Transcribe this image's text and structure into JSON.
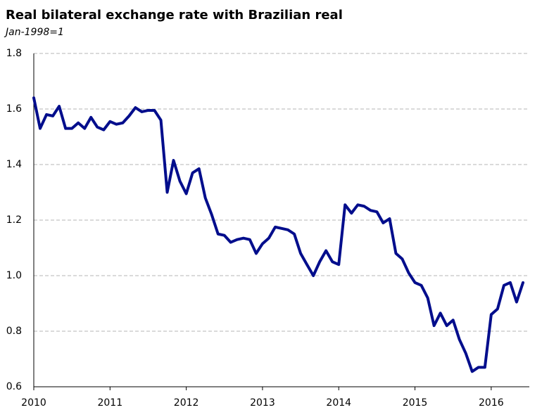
{
  "chart_data": {
    "type": "line",
    "title": "Real bilateral exchange rate with Brazilian real",
    "subtitle": "Jan-1998=1",
    "x": [
      2010,
      2010.083,
      2010.167,
      2010.25,
      2010.333,
      2010.417,
      2010.5,
      2010.583,
      2010.667,
      2010.75,
      2010.833,
      2010.917,
      2011,
      2011.083,
      2011.167,
      2011.25,
      2011.333,
      2011.417,
      2011.5,
      2011.583,
      2011.667,
      2011.75,
      2011.833,
      2011.917,
      2012,
      2012.083,
      2012.167,
      2012.25,
      2012.333,
      2012.417,
      2012.5,
      2012.583,
      2012.667,
      2012.75,
      2012.833,
      2012.917,
      2013,
      2013.083,
      2013.167,
      2013.25,
      2013.333,
      2013.417,
      2013.5,
      2013.583,
      2013.667,
      2013.75,
      2013.833,
      2013.917,
      2014,
      2014.083,
      2014.167,
      2014.25,
      2014.333,
      2014.417,
      2014.5,
      2014.583,
      2014.667,
      2014.75,
      2014.833,
      2014.917,
      2015,
      2015.083,
      2015.167,
      2015.25,
      2015.333,
      2015.417,
      2015.5,
      2015.583,
      2015.667,
      2015.75,
      2015.833,
      2015.917,
      2016,
      2016.083,
      2016.167,
      2016.25,
      2016.333,
      2016.417
    ],
    "series": [
      {
        "color": "#000d8c",
        "values": [
          1.64,
          1.53,
          1.58,
          1.575,
          1.61,
          1.53,
          1.53,
          1.55,
          1.53,
          1.57,
          1.535,
          1.525,
          1.555,
          1.545,
          1.55,
          1.575,
          1.605,
          1.59,
          1.595,
          1.595,
          1.56,
          1.3,
          1.415,
          1.34,
          1.295,
          1.37,
          1.385,
          1.28,
          1.22,
          1.15,
          1.145,
          1.12,
          1.13,
          1.135,
          1.13,
          1.08,
          1.115,
          1.135,
          1.175,
          1.17,
          1.165,
          1.15,
          1.08,
          1.04,
          1.0,
          1.05,
          1.09,
          1.05,
          1.04,
          1.255,
          1.225,
          1.255,
          1.25,
          1.235,
          1.23,
          1.19,
          1.205,
          1.08,
          1.06,
          1.01,
          0.975,
          0.965,
          0.92,
          0.82,
          0.865,
          0.82,
          0.84,
          0.77,
          0.72,
          0.655,
          0.67,
          0.67,
          0.86,
          0.88,
          0.965,
          0.975,
          0.905,
          0.975
        ]
      }
    ],
    "xlim": [
      2010,
      2016.5
    ],
    "xticks": [
      2010,
      2011,
      2012,
      2013,
      2014,
      2015,
      2016
    ],
    "ylim": [
      0.6,
      1.8
    ],
    "yticks": [
      0.6,
      0.8,
      {
        "value": 1,
        "label": "1.0"
      },
      1.2,
      1.4,
      1.6,
      1.8
    ],
    "grid": true
  }
}
